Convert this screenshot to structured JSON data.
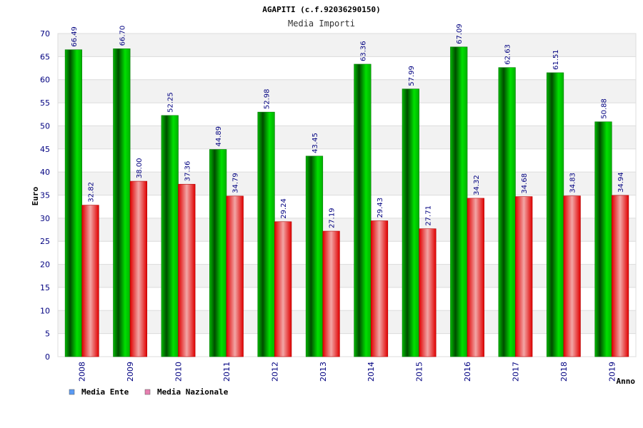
{
  "chart_data": {
    "type": "bar",
    "title": "AGAPITI (c.f.92036290150)",
    "subtitle": "Media Importi",
    "xlabel": "Anno",
    "ylabel": "Euro",
    "ylim": [
      0,
      70
    ],
    "yticks": [
      0,
      5,
      10,
      15,
      20,
      25,
      30,
      35,
      40,
      45,
      50,
      55,
      60,
      65,
      70
    ],
    "grid": true,
    "legend_position": "bottom-left",
    "categories": [
      "2008",
      "2009",
      "2010",
      "2011",
      "2012",
      "2013",
      "2014",
      "2015",
      "2016",
      "2017",
      "2018",
      "2019"
    ],
    "series": [
      {
        "name": "Media Ente",
        "color": "#00a000",
        "legend_color": "#5b9bf5",
        "values": [
          66.49,
          66.7,
          52.25,
          44.89,
          52.98,
          43.45,
          63.36,
          57.99,
          67.09,
          62.63,
          61.51,
          50.88
        ],
        "labels": [
          "66.49",
          "66.70",
          "52.25",
          "44.89",
          "52.98",
          "43.45",
          "63.36",
          "57.99",
          "67.09",
          "62.63",
          "61.51",
          "50.88"
        ]
      },
      {
        "name": "Media Nazionale",
        "color": "#e00000",
        "legend_color": "#e77fb0",
        "values": [
          32.82,
          38.0,
          37.36,
          34.79,
          29.24,
          27.19,
          29.43,
          27.71,
          34.32,
          34.68,
          34.83,
          34.94
        ],
        "labels": [
          "32.82",
          "38.00",
          "37.36",
          "34.79",
          "29.24",
          "27.19",
          "29.43",
          "27.71",
          "34.32",
          "34.68",
          "34.83",
          "34.94"
        ]
      }
    ]
  }
}
